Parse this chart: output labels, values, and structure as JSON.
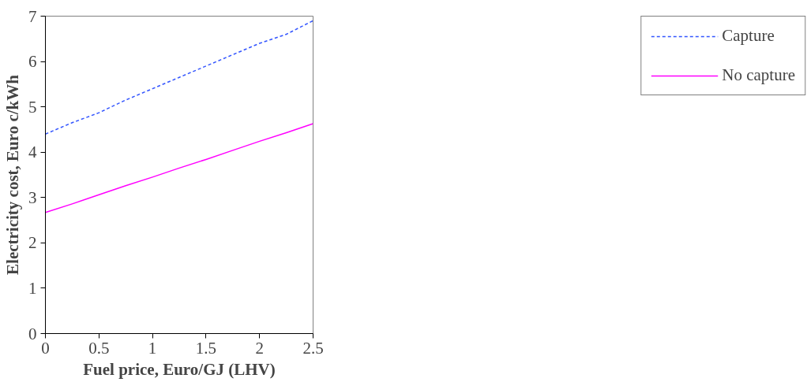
{
  "chart_data": {
    "type": "line",
    "xlabel": "Fuel price, Euro/GJ (LHV)",
    "ylabel": "Electricity cost, Euro c/kWh",
    "x": [
      0,
      0.25,
      0.5,
      0.75,
      1,
      1.25,
      1.5,
      1.75,
      2,
      2.25,
      2.5
    ],
    "series": [
      {
        "name": "Capture",
        "color": "#3355ff",
        "line_style": "dashed",
        "values": [
          4.4,
          4.65,
          4.87,
          5.15,
          5.4,
          5.65,
          5.9,
          6.15,
          6.4,
          6.6,
          6.9
        ]
      },
      {
        "name": "No capture",
        "color": "#ff00ff",
        "line_style": "solid",
        "values": [
          2.67,
          2.86,
          3.06,
          3.26,
          3.45,
          3.65,
          3.84,
          4.04,
          4.24,
          4.43,
          4.63
        ]
      }
    ],
    "xlim": [
      0,
      2.5
    ],
    "ylim": [
      0,
      7
    ],
    "xticks": [
      0,
      0.5,
      1,
      1.5,
      2,
      2.5
    ],
    "yticks": [
      0,
      1,
      2,
      3,
      4,
      5,
      6,
      7
    ],
    "grid": false,
    "legend": "right",
    "marker": "none"
  }
}
